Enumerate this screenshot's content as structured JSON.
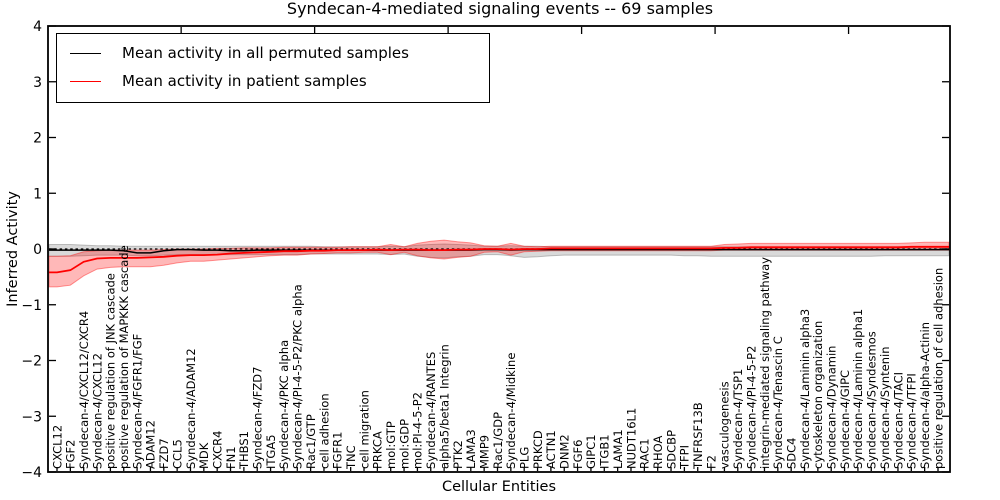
{
  "chart_data": {
    "type": "line",
    "title": "Syndecan-4-mediated signaling events -- 69 samples",
    "xlabel": "Cellular Entities",
    "ylabel": "Inferred Activity",
    "ylim": [
      -4,
      4
    ],
    "ytick_labels": [
      "4",
      "3",
      "2",
      "1",
      "0",
      "−1",
      "−2",
      "−3",
      "−4"
    ],
    "ytick_values": [
      4,
      3,
      2,
      1,
      0,
      -1,
      -2,
      -3,
      -4
    ],
    "grid": false,
    "legend_position": "upper-left",
    "zero_reference_line": {
      "value": 0,
      "style": "dashed",
      "color": "#000000"
    },
    "categories": [
      "CXCL12",
      "FGF2",
      "Syndecan-4/CXCL12/CXCR4",
      "Syndecan-4/CXCL12",
      "positive regulation of JNK cascade",
      "positive regulation of MAPKKK cascade",
      "Syndecan-4/FGFR1/FGF",
      "ADAM12",
      "FZD7",
      "CCL5",
      "Syndecan-4/ADAM12",
      "MDK",
      "CXCR4",
      "FN1",
      "THBS1",
      "Syndecan-4/FZD7",
      "ITGA5",
      "Syndecan-4/PKC alpha",
      "Syndecan-4/PI-4-5-P2/PKC alpha",
      "Rac1/GTP",
      "cell adhesion",
      "FGFR1",
      "TNC",
      "cell migration",
      "PRKCA",
      "mol:GTP",
      "mol:GDP",
      "mol:PI-4-5-P2",
      "Syndecan-4/RANTES",
      "alpha5/beta1 Integrin",
      "PTK2",
      "LAMA3",
      "MMP9",
      "Rac1/GDP",
      "Syndecan-4/Midkine",
      "PLG",
      "PRKCD",
      "ACTN1",
      "DNM2",
      "FGF6",
      "GIPC1",
      "ITGB1",
      "LAMA1",
      "NUDT16L1",
      "RAC1",
      "RHOA",
      "SDCBP",
      "TFPI",
      "TNFRSF13B",
      "F2",
      "vasculogenesis",
      "Syndecan-4/TSP1",
      "Syndecan-4/PI-4-5-P2",
      "integrin-mediated signaling pathway",
      "Syndecan-4/Tenascin C",
      "SDC4",
      "Syndecan-4/Laminin alpha3",
      "cytoskeleton organization",
      "Syndecan-4/Dynamin",
      "Syndecan-4/GIPC",
      "Syndecan-4/Laminin alpha1",
      "Syndecan-4/Syndesmos",
      "Syndecan-4/Syntenin",
      "Syndecan-4/TACI",
      "Syndecan-4/TFPI",
      "Syndecan-4/alpha-Actinin",
      "positive regulation of cell adhesion"
    ],
    "series": [
      {
        "name": "Mean activity in all permuted samples",
        "color": "#000000",
        "band_fill": "rgba(120,120,120,0.28)",
        "band_edge": "rgba(120,120,120,0.45)",
        "values": [
          -0.02,
          -0.02,
          -0.02,
          -0.02,
          -0.02,
          -0.03,
          -0.07,
          -0.07,
          -0.03,
          -0.01,
          -0.01,
          -0.02,
          -0.02,
          -0.03,
          -0.03,
          -0.02,
          -0.02,
          -0.02,
          -0.02,
          -0.02,
          -0.02,
          -0.02,
          -0.02,
          -0.02,
          -0.02,
          -0.02,
          -0.02,
          -0.02,
          -0.02,
          -0.02,
          -0.02,
          -0.02,
          -0.01,
          -0.01,
          -0.02,
          -0.01,
          -0.01,
          -0.01,
          -0.01,
          -0.01,
          -0.01,
          -0.01,
          -0.01,
          -0.01,
          -0.01,
          -0.01,
          -0.01,
          -0.01,
          -0.01,
          -0.01,
          -0.01,
          -0.01,
          -0.01,
          -0.01,
          -0.01,
          -0.01,
          -0.01,
          -0.01,
          -0.01,
          -0.01,
          -0.01,
          -0.01,
          -0.01,
          -0.01,
          -0.01,
          -0.01,
          -0.01
        ],
        "band_upper": [
          0.08,
          0.08,
          0.07,
          0.06,
          0.06,
          0.05,
          0.05,
          0.05,
          0.05,
          0.05,
          0.05,
          0.05,
          0.05,
          0.05,
          0.05,
          0.05,
          0.05,
          0.05,
          0.05,
          0.05,
          0.04,
          0.04,
          0.04,
          0.04,
          0.04,
          0.05,
          0.04,
          0.07,
          0.08,
          0.09,
          0.08,
          0.07,
          0.05,
          0.05,
          0.06,
          0.05,
          0.05,
          0.04,
          0.04,
          0.04,
          0.04,
          0.04,
          0.04,
          0.04,
          0.04,
          0.04,
          0.04,
          0.04,
          0.04,
          0.04,
          0.04,
          0.04,
          0.04,
          0.04,
          0.04,
          0.04,
          0.04,
          0.04,
          0.04,
          0.04,
          0.04,
          0.04,
          0.04,
          0.04,
          0.04,
          0.04,
          0.04
        ],
        "band_lower": [
          -0.13,
          -0.13,
          -0.12,
          -0.11,
          -0.11,
          -0.11,
          -0.12,
          -0.12,
          -0.11,
          -0.1,
          -0.1,
          -0.1,
          -0.1,
          -0.1,
          -0.1,
          -0.1,
          -0.1,
          -0.1,
          -0.1,
          -0.09,
          -0.09,
          -0.09,
          -0.09,
          -0.09,
          -0.09,
          -0.1,
          -0.09,
          -0.13,
          -0.15,
          -0.16,
          -0.14,
          -0.13,
          -0.1,
          -0.1,
          -0.12,
          -0.15,
          -0.14,
          -0.12,
          -0.11,
          -0.11,
          -0.11,
          -0.11,
          -0.11,
          -0.11,
          -0.11,
          -0.11,
          -0.11,
          -0.12,
          -0.12,
          -0.13,
          -0.13,
          -0.13,
          -0.13,
          -0.13,
          -0.13,
          -0.13,
          -0.13,
          -0.13,
          -0.13,
          -0.13,
          -0.13,
          -0.13,
          -0.12,
          -0.12,
          -0.12,
          -0.12,
          -0.12
        ]
      },
      {
        "name": "Mean activity in patient samples",
        "color": "#ff0000",
        "band_fill": "rgba(255,0,0,0.28)",
        "band_edge": "rgba(255,0,0,0.40)",
        "values": [
          -0.42,
          -0.38,
          -0.23,
          -0.17,
          -0.16,
          -0.16,
          -0.16,
          -0.15,
          -0.14,
          -0.12,
          -0.11,
          -0.11,
          -0.1,
          -0.08,
          -0.07,
          -0.06,
          -0.05,
          -0.04,
          -0.04,
          -0.03,
          -0.03,
          -0.02,
          -0.02,
          -0.02,
          -0.01,
          -0.02,
          -0.01,
          -0.01,
          -0.02,
          -0.02,
          -0.01,
          -0.01,
          0.0,
          0.0,
          -0.01,
          0.0,
          0.0,
          0.01,
          0.01,
          0.01,
          0.01,
          0.01,
          0.01,
          0.01,
          0.01,
          0.01,
          0.01,
          0.01,
          0.01,
          0.01,
          0.02,
          0.02,
          0.03,
          0.03,
          0.03,
          0.03,
          0.03,
          0.03,
          0.03,
          0.03,
          0.03,
          0.03,
          0.03,
          0.03,
          0.04,
          0.04,
          0.04
        ],
        "band_upper": [
          -0.13,
          -0.12,
          -0.05,
          -0.03,
          -0.02,
          -0.02,
          -0.02,
          -0.02,
          -0.01,
          0.0,
          0.0,
          0.0,
          0.01,
          0.01,
          0.02,
          0.02,
          0.02,
          0.03,
          0.03,
          0.03,
          0.03,
          0.03,
          0.04,
          0.04,
          0.04,
          0.08,
          0.04,
          0.1,
          0.14,
          0.16,
          0.13,
          0.11,
          0.06,
          0.05,
          0.1,
          0.05,
          0.04,
          0.05,
          0.05,
          0.05,
          0.05,
          0.05,
          0.05,
          0.05,
          0.05,
          0.05,
          0.05,
          0.05,
          0.05,
          0.05,
          0.08,
          0.09,
          0.1,
          0.1,
          0.1,
          0.1,
          0.1,
          0.1,
          0.1,
          0.1,
          0.1,
          0.1,
          0.1,
          0.1,
          0.11,
          0.12,
          0.12
        ],
        "band_lower": [
          -0.68,
          -0.65,
          -0.48,
          -0.36,
          -0.33,
          -0.32,
          -0.32,
          -0.32,
          -0.29,
          -0.25,
          -0.22,
          -0.22,
          -0.2,
          -0.18,
          -0.16,
          -0.14,
          -0.12,
          -0.11,
          -0.11,
          -0.09,
          -0.08,
          -0.07,
          -0.07,
          -0.06,
          -0.06,
          -0.1,
          -0.06,
          -0.12,
          -0.16,
          -0.18,
          -0.15,
          -0.13,
          -0.06,
          -0.05,
          -0.11,
          -0.05,
          -0.04,
          -0.03,
          -0.03,
          -0.03,
          -0.03,
          -0.03,
          -0.03,
          -0.03,
          -0.03,
          -0.03,
          -0.03,
          -0.03,
          -0.03,
          -0.03,
          -0.02,
          -0.02,
          -0.02,
          -0.02,
          -0.02,
          -0.02,
          -0.02,
          -0.02,
          -0.02,
          -0.02,
          -0.02,
          -0.02,
          -0.02,
          -0.02,
          -0.02,
          -0.02,
          -0.02
        ]
      }
    ]
  }
}
